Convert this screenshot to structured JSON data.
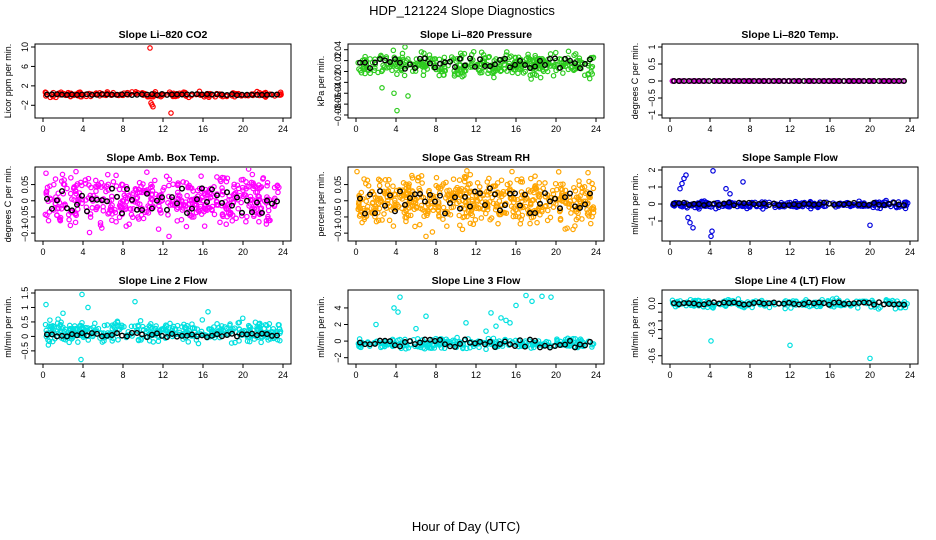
{
  "figure": {
    "title": "HDP_121224  Slope Diagnostics",
    "xlabel": "Hour of Day (UTC)"
  },
  "chart_data": [
    {
      "type": "scatter",
      "title": "Slope Li–820 CO2",
      "ylabel": "Licor ppm per min.",
      "xlim": [
        0,
        24
      ],
      "ylim": [
        -4,
        10
      ],
      "xticks": [
        0,
        4,
        8,
        12,
        16,
        20,
        24
      ],
      "yticks": [
        -2,
        2,
        6,
        10
      ],
      "series_color": "#ff0000",
      "mean_color": "#000000",
      "noise": {
        "center": 0.2,
        "spread": 0.35,
        "count": 200
      },
      "points_extra": [
        [
          10.7,
          9.8
        ],
        [
          10.8,
          -1.5
        ],
        [
          10.9,
          -1.9
        ],
        [
          11.0,
          -2.3
        ],
        [
          12.8,
          -3.6
        ]
      ],
      "means_noise": {
        "center": 0.2,
        "spread": 0.12
      }
    },
    {
      "type": "scatter",
      "title": "Slope Li–820 Pressure",
      "ylabel": "kPa per min.",
      "xlim": [
        0,
        24
      ],
      "ylim": [
        -0.08,
        0.045
      ],
      "xticks": [
        0,
        4,
        8,
        12,
        16,
        20,
        24
      ],
      "yticks": [
        -0.08,
        -0.06,
        -0.04,
        -0.02,
        0.0,
        0.02,
        0.04
      ],
      "series_color": "#2ecc1f",
      "mean_color": "#000000",
      "noise": {
        "center": 0.012,
        "spread": 0.012,
        "count": 380
      },
      "points_extra": [
        [
          4.1,
          -0.072
        ],
        [
          4.9,
          0.045
        ],
        [
          3.8,
          -0.04
        ],
        [
          2.6,
          -0.03
        ],
        [
          5.2,
          -0.045
        ]
      ],
      "means_noise": {
        "center": 0.015,
        "spread": 0.01
      }
    },
    {
      "type": "scatter",
      "title": "Slope Li–820 Temp.",
      "ylabel": "degrees C per min.",
      "xlim": [
        0,
        24
      ],
      "ylim": [
        -1.0,
        1.0
      ],
      "xticks": [
        0,
        4,
        8,
        12,
        16,
        20,
        24
      ],
      "yticks": [
        -1.0,
        -0.5,
        0.0,
        0.5,
        1.0
      ],
      "series_color": "#cc00cc",
      "mean_color": "#000000",
      "noise": {
        "center": 0.0,
        "spread": 0.0,
        "count": 160
      },
      "points_extra": [],
      "means_noise": {
        "center": 0.0,
        "spread": 0.0
      }
    },
    {
      "type": "scatter",
      "title": "Slope Amb. Box Temp.",
      "ylabel": "degrees C per min.",
      "xlim": [
        0,
        24
      ],
      "ylim": [
        -0.115,
        0.095
      ],
      "xticks": [
        0,
        4,
        8,
        12,
        16,
        20,
        24
      ],
      "yticks": [
        -0.1,
        -0.05,
        0.0,
        0.05
      ],
      "series_color": "#ff00ff",
      "mean_color": "#000000",
      "noise": {
        "center": 0.0,
        "spread": 0.045,
        "count": 480
      },
      "points_extra": [
        [
          0.3,
          0.085
        ],
        [
          12.6,
          -0.11
        ],
        [
          3.3,
          0.09
        ]
      ],
      "means_noise": {
        "center": 0.0,
        "spread": 0.04
      }
    },
    {
      "type": "scatter",
      "title": "Slope Gas Stream RH",
      "ylabel": "percent per min.",
      "xlim": [
        0,
        24
      ],
      "ylim": [
        -0.115,
        0.095
      ],
      "xticks": [
        0,
        4,
        8,
        12,
        16,
        20,
        24
      ],
      "yticks": [
        -0.1,
        -0.05,
        0.0,
        0.05
      ],
      "series_color": "#ffa500",
      "mean_color": "#000000",
      "noise": {
        "center": 0.0,
        "spread": 0.045,
        "count": 560
      },
      "points_extra": [
        [
          0.1,
          0.09
        ],
        [
          15.6,
          0.09
        ],
        [
          7.0,
          -0.11
        ]
      ],
      "means_noise": {
        "center": 0.0,
        "spread": 0.04
      }
    },
    {
      "type": "scatter",
      "title": "Slope Sample Flow",
      "ylabel": "ml/min per min.",
      "xlim": [
        0,
        24
      ],
      "ylim": [
        -2.0,
        2.0
      ],
      "xticks": [
        0,
        4,
        8,
        12,
        16,
        20,
        24
      ],
      "yticks": [
        -1,
        0,
        1,
        2
      ],
      "series_color": "#0000dd",
      "mean_color": "#000000",
      "noise": {
        "center": -0.05,
        "spread": 0.12,
        "count": 300
      },
      "points_extra": [
        [
          1.2,
          1.2
        ],
        [
          1.4,
          1.5
        ],
        [
          1.6,
          1.7
        ],
        [
          1.0,
          0.9
        ],
        [
          4.3,
          1.95
        ],
        [
          4.2,
          -1.6
        ],
        [
          4.1,
          -1.9
        ],
        [
          2.0,
          -1.1
        ],
        [
          2.3,
          -1.4
        ],
        [
          7.3,
          1.3
        ],
        [
          1.8,
          -0.8
        ],
        [
          20.0,
          -1.25
        ],
        [
          5.6,
          0.9
        ],
        [
          6.0,
          0.6
        ]
      ],
      "means_noise": {
        "center": 0.0,
        "spread": 0.08
      }
    },
    {
      "type": "scatter",
      "title": "Slope Line 2 Flow",
      "ylabel": "ml/min per min.",
      "xlim": [
        0,
        24
      ],
      "ylim": [
        -0.85,
        1.5
      ],
      "xticks": [
        0,
        4,
        8,
        12,
        16,
        20,
        24
      ],
      "yticks": [
        -0.5,
        0.0,
        0.5,
        1.0,
        1.5
      ],
      "series_color": "#00e0e0",
      "mean_color": "#000000",
      "noise": {
        "center": 0.15,
        "spread": 0.22,
        "count": 380
      },
      "points_extra": [
        [
          3.9,
          1.45
        ],
        [
          0.3,
          1.1
        ],
        [
          9.2,
          1.2
        ],
        [
          3.8,
          -0.8
        ],
        [
          16.5,
          0.85
        ],
        [
          2.0,
          0.8
        ],
        [
          4.5,
          1.0
        ]
      ],
      "means_noise": {
        "center": 0.05,
        "spread": 0.08
      }
    },
    {
      "type": "scatter",
      "title": "Slope Line 3 Flow",
      "ylabel": "ml/min per min.",
      "xlim": [
        0,
        24
      ],
      "ylim": [
        -2.4,
        5.8
      ],
      "xticks": [
        0,
        4,
        8,
        12,
        16,
        20,
        24
      ],
      "yticks": [
        -2,
        0,
        2,
        4
      ],
      "series_color": "#00e0e0",
      "mean_color": "#000000",
      "noise": {
        "center": -0.3,
        "spread": 0.4,
        "count": 260
      },
      "points_extra": [
        [
          4.4,
          5.3
        ],
        [
          3.8,
          4.0
        ],
        [
          4.2,
          3.5
        ],
        [
          7.0,
          3.0
        ],
        [
          13.5,
          3.4
        ],
        [
          14.5,
          2.8
        ],
        [
          15.4,
          2.2
        ],
        [
          16.0,
          4.3
        ],
        [
          17.0,
          5.5
        ],
        [
          17.6,
          4.8
        ],
        [
          18.6,
          5.4
        ],
        [
          19.5,
          5.3
        ],
        [
          13.0,
          1.2
        ],
        [
          14.0,
          1.8
        ],
        [
          15.0,
          2.5
        ],
        [
          11.0,
          2.2
        ],
        [
          2.0,
          2.0
        ],
        [
          6.0,
          1.5
        ]
      ],
      "means_noise": {
        "center": -0.3,
        "spread": 0.5
      }
    },
    {
      "type": "scatter",
      "title": "Slope Line 4 (LT) Flow",
      "ylabel": "ml/min per min.",
      "xlim": [
        0,
        24
      ],
      "ylim": [
        -0.66,
        0.12
      ],
      "xticks": [
        0,
        4,
        8,
        12,
        16,
        20,
        24
      ],
      "yticks": [
        -0.6,
        -0.4,
        -0.3,
        -0.2,
        -0.1,
        0.0
      ],
      "ytick_labels": [
        "-0.6",
        "",
        "-0.3",
        "",
        "",
        "0.0"
      ],
      "series_color": "#00e0e0",
      "mean_color": "#000000",
      "noise": {
        "center": 0.0,
        "spread": 0.03,
        "count": 230
      },
      "points_extra": [
        [
          4.1,
          -0.43
        ],
        [
          12.0,
          -0.48
        ],
        [
          20.0,
          -0.63
        ]
      ],
      "means_noise": {
        "center": 0.0,
        "spread": 0.015
      }
    }
  ]
}
